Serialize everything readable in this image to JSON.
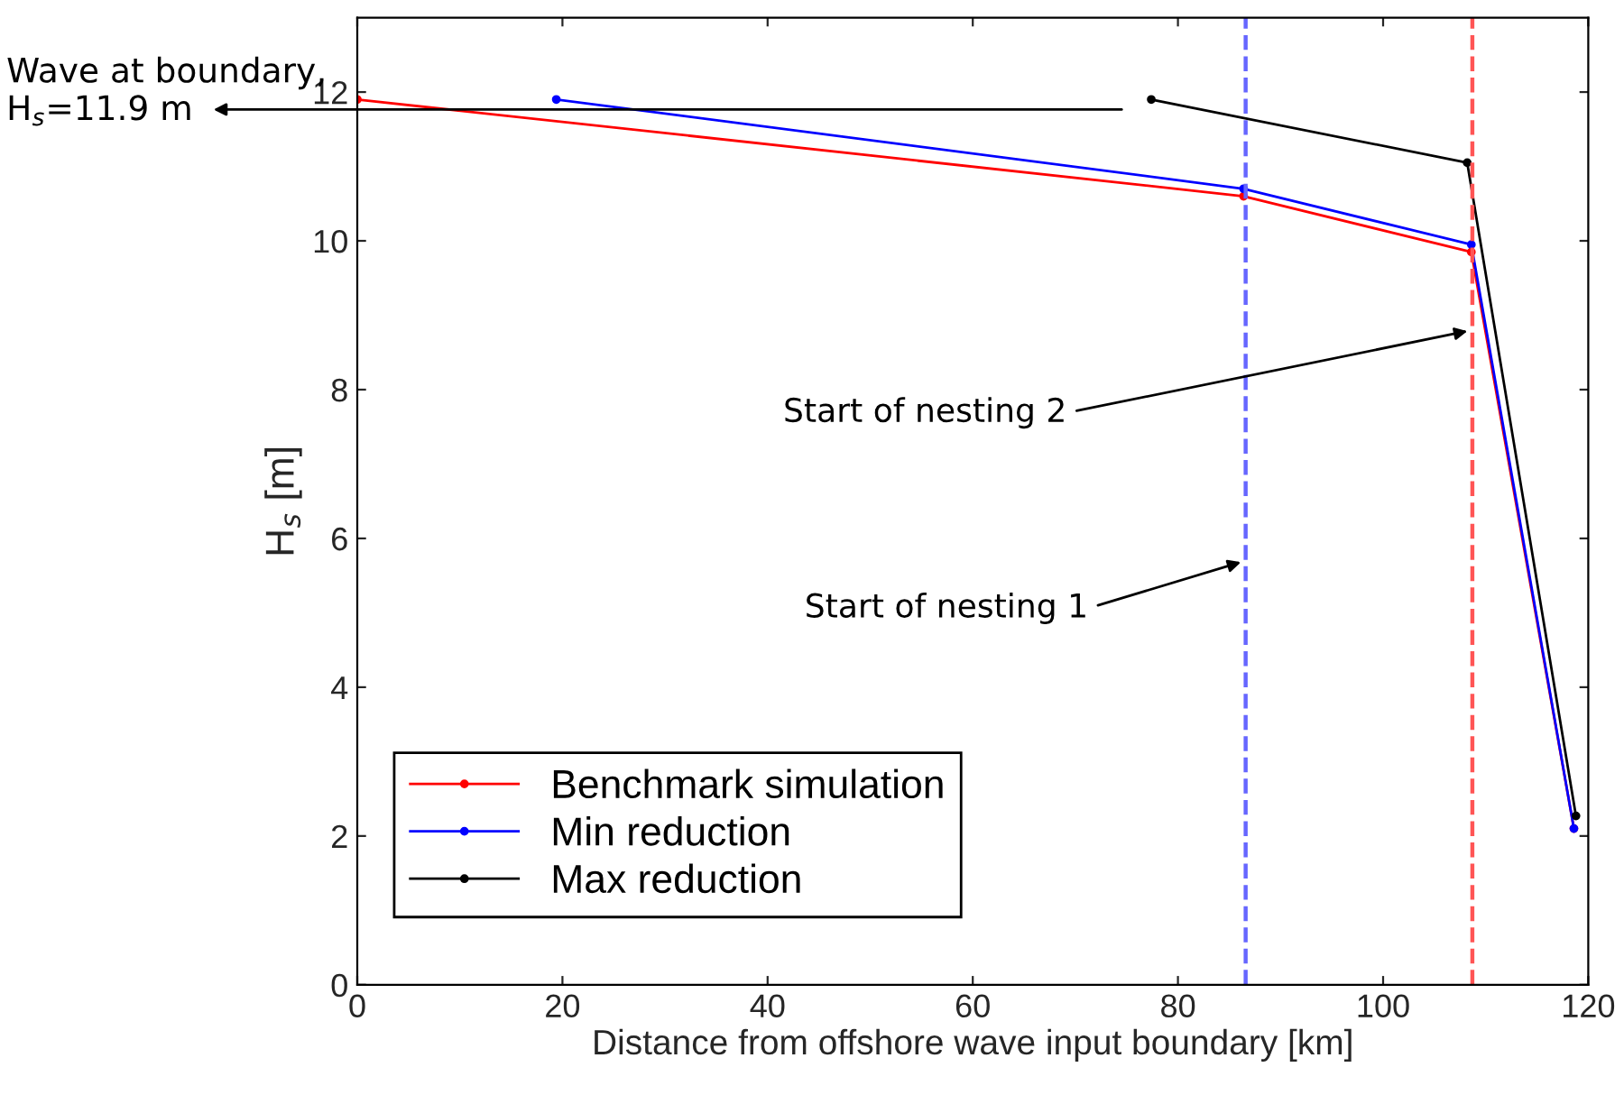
{
  "chart_data": {
    "type": "line",
    "xlabel": "Distance from offshore wave input boundary [km]",
    "ylabel": "H$_{s}$ [m]",
    "series": [
      {
        "name": "Benchmark simulation",
        "color": "#ff0000",
        "x": [
          0,
          86.4,
          108.6,
          118.6
        ],
        "values": [
          11.9,
          10.6,
          9.85,
          2.1
        ]
      },
      {
        "name": "Min reduction",
        "color": "#0000ff",
        "x": [
          19.4,
          86.4,
          108.6,
          118.6
        ],
        "values": [
          11.9,
          10.7,
          9.95,
          2.1
        ]
      },
      {
        "name": "Max reduction",
        "color": "#000000",
        "x": [
          77.4,
          108.2,
          118.8
        ],
        "values": [
          11.9,
          11.05,
          2.27
        ]
      }
    ],
    "ref_lines": [
      {
        "axis": "x",
        "value": 86.6,
        "color": "#6666ff",
        "line_style": "dashed"
      },
      {
        "axis": "x",
        "value": 108.7,
        "color": "#ff5555",
        "line_style": "dashed"
      }
    ],
    "annotations": [
      {
        "text": "Wave at boundary,\nH$_{s}$=11.9 m",
        "x": 0,
        "y": 11.9
      },
      {
        "text": "Start of nesting 2",
        "x": 108.7,
        "y": 8.8
      },
      {
        "text": "Start of nesting 1",
        "x": 86.6,
        "y": 5.7
      }
    ],
    "xlim": [
      0,
      120
    ],
    "ylim": [
      0,
      13
    ],
    "xticks": [
      0,
      20,
      40,
      60,
      80,
      100,
      120
    ],
    "yticks": [
      0,
      2,
      4,
      6,
      8,
      10,
      12
    ],
    "marker": "circle",
    "line_style": "solid",
    "grid": false,
    "legend": "bottom left"
  }
}
